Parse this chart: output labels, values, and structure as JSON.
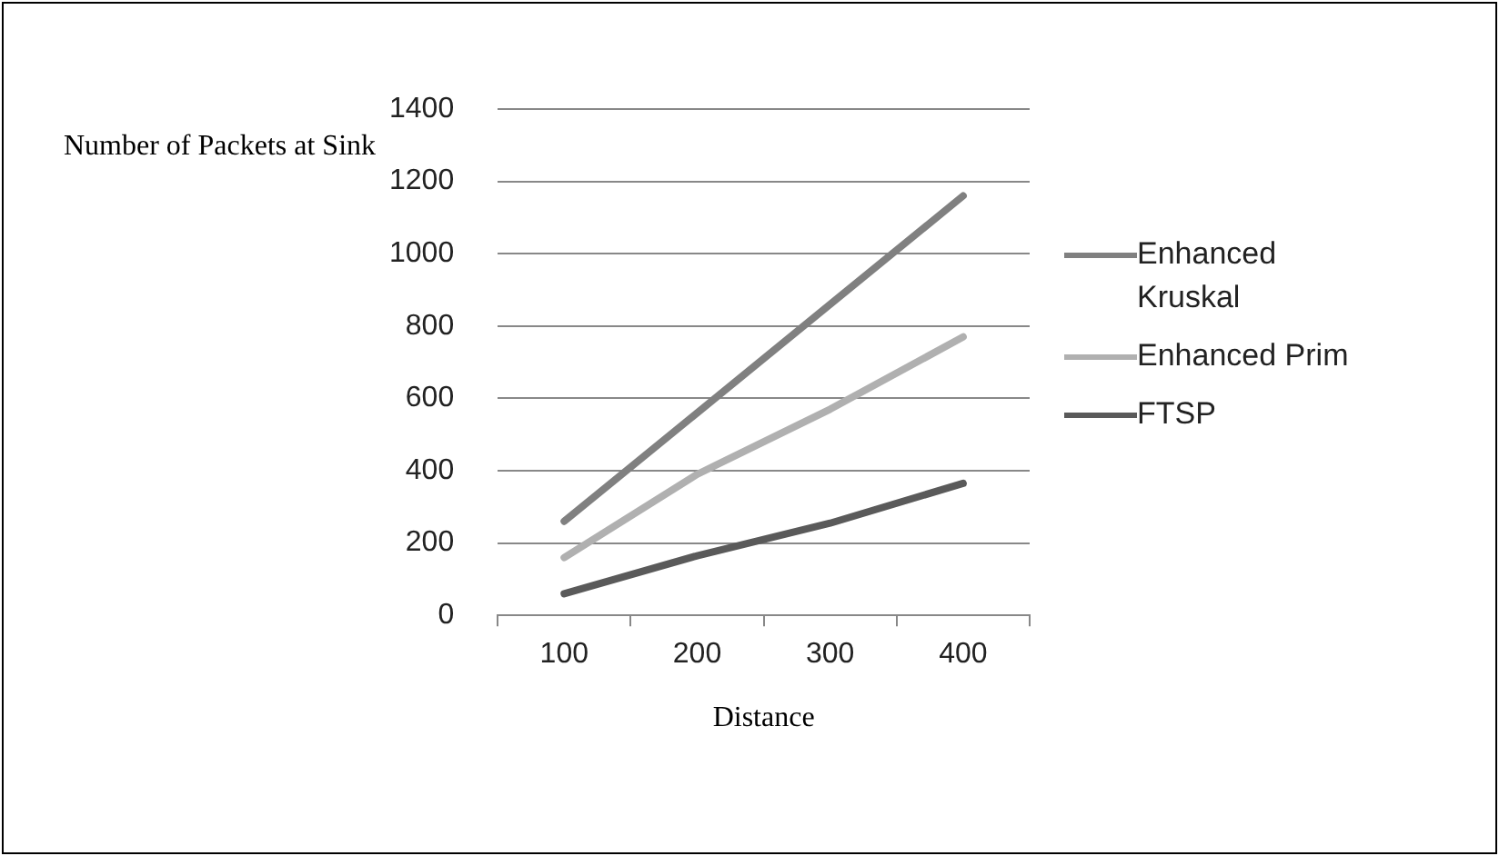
{
  "chart_data": {
    "type": "line",
    "ylabel": "Number of Packets at Sink",
    "xlabel": "Distance",
    "categories": [
      "100",
      "200",
      "300",
      "400"
    ],
    "series": [
      {
        "name": "Enhanced Kruskal",
        "color": "#808080",
        "values": [
          260,
          560,
          860,
          1160
        ]
      },
      {
        "name": "Enhanced Prim",
        "color": "#b0b0b0",
        "values": [
          160,
          390,
          570,
          770
        ]
      },
      {
        "name": "FTSP",
        "color": "#5a5a5a",
        "values": [
          60,
          165,
          255,
          365
        ]
      }
    ],
    "ylim": [
      0,
      1400
    ],
    "yticks": [
      0,
      200,
      400,
      600,
      800,
      1000,
      1200,
      1400
    ],
    "grid": "y",
    "legend": "right",
    "marker": "none",
    "line_style": "solid"
  }
}
